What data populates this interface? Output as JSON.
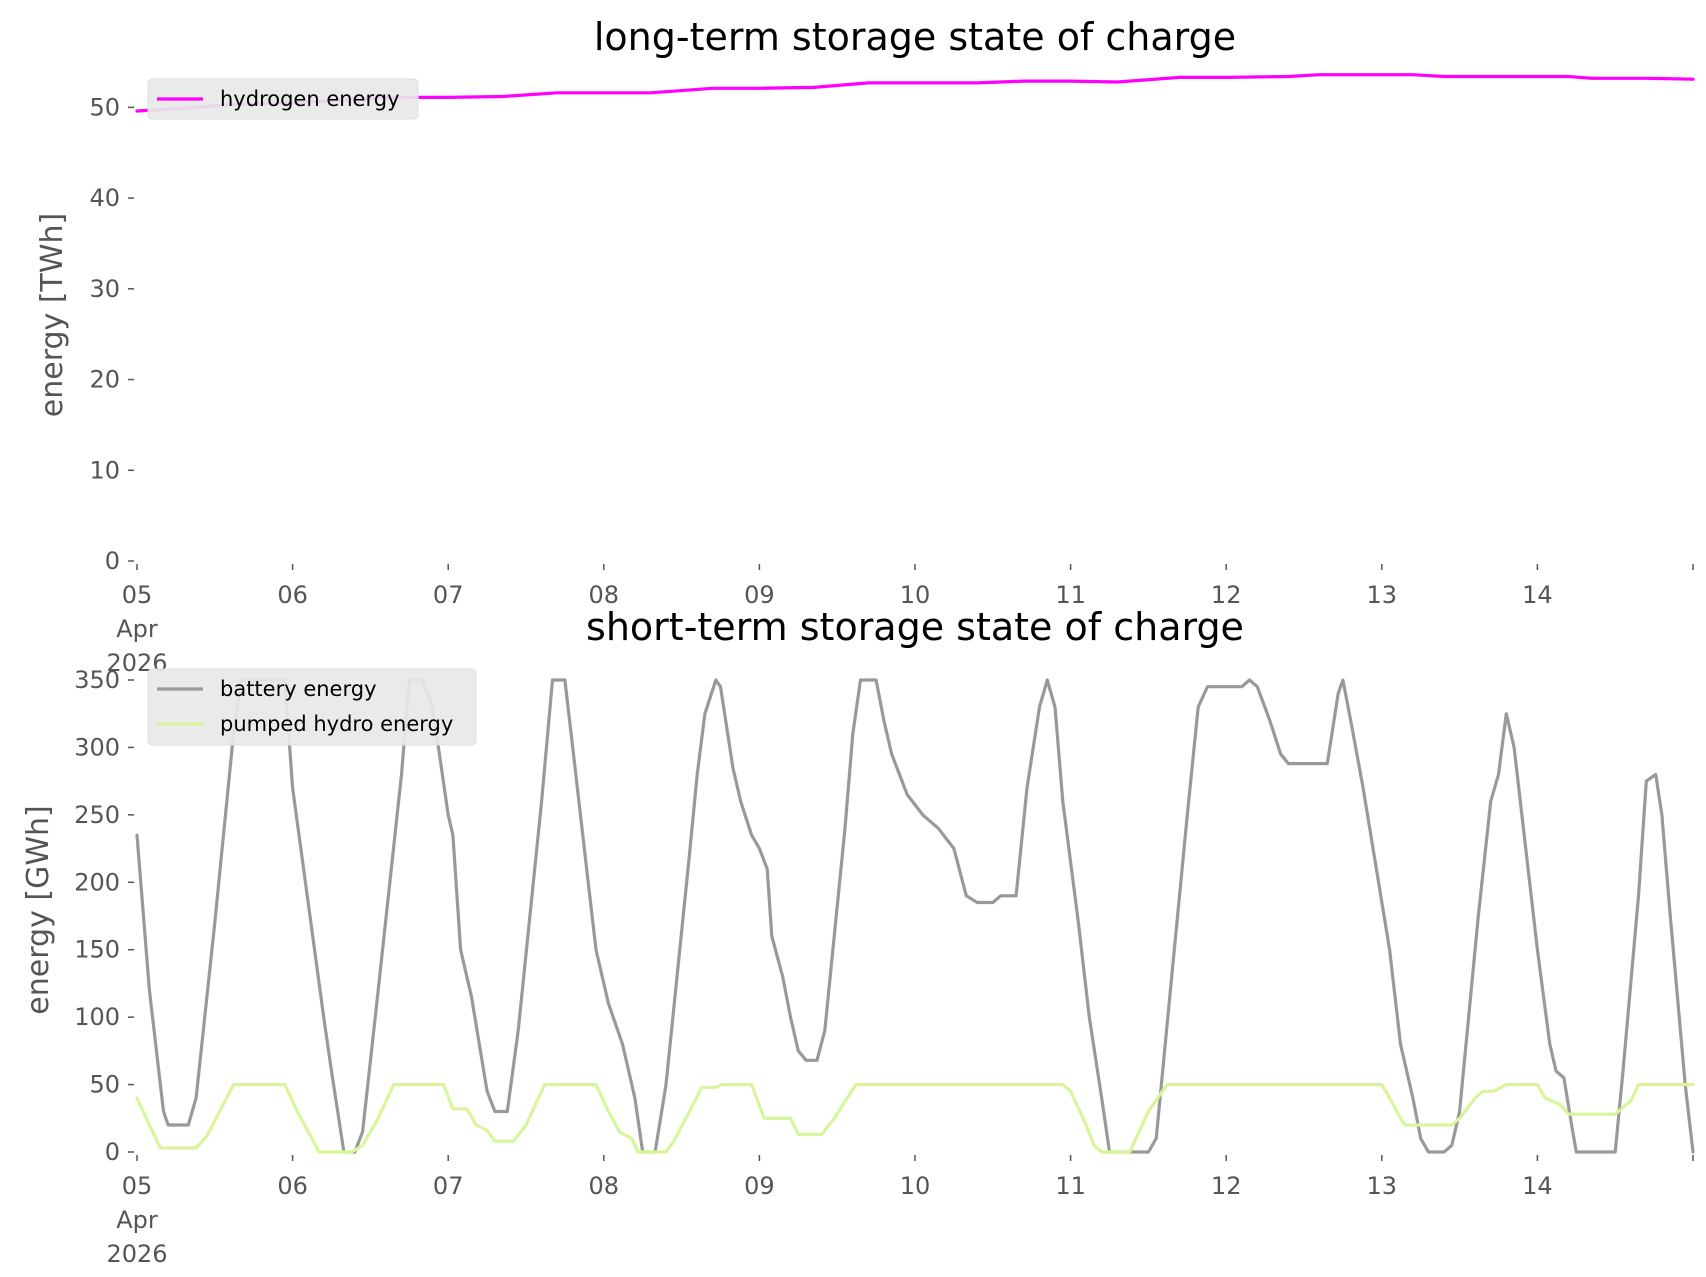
{
  "chart_data": [
    {
      "type": "line",
      "title": "long-term storage state of charge",
      "ylabel": "energy [TWh]",
      "xlabel": "",
      "ylim": [
        0,
        55
      ],
      "xlim": [
        0,
        10
      ],
      "yticks": [
        0,
        10,
        20,
        30,
        40,
        50
      ],
      "xtick_labels": [
        "05\nApr\n2026",
        "06",
        "07",
        "08",
        "09",
        "10",
        "11",
        "12",
        "13",
        "14"
      ],
      "grid": false,
      "legend_position": "upper-left",
      "series": [
        {
          "name": "hydrogen energy",
          "color": "#ff00ff",
          "points": [
            [
              0,
              49.6
            ],
            [
              0.3,
              49.9
            ],
            [
              0.6,
              50.3
            ],
            [
              1.0,
              50.5
            ],
            [
              1.4,
              50.9
            ],
            [
              1.7,
              51.1
            ],
            [
              2.0,
              51.1
            ],
            [
              2.35,
              51.2
            ],
            [
              2.7,
              51.6
            ],
            [
              3.0,
              51.6
            ],
            [
              3.3,
              51.6
            ],
            [
              3.7,
              52.1
            ],
            [
              4.0,
              52.1
            ],
            [
              4.35,
              52.2
            ],
            [
              4.7,
              52.7
            ],
            [
              5.0,
              52.7
            ],
            [
              5.4,
              52.7
            ],
            [
              5.7,
              52.9
            ],
            [
              6.0,
              52.9
            ],
            [
              6.3,
              52.8
            ],
            [
              6.7,
              53.3
            ],
            [
              7.0,
              53.3
            ],
            [
              7.4,
              53.4
            ],
            [
              7.6,
              53.6
            ],
            [
              8.0,
              53.6
            ],
            [
              8.2,
              53.6
            ],
            [
              8.4,
              53.4
            ],
            [
              8.8,
              53.4
            ],
            [
              9.2,
              53.4
            ],
            [
              9.35,
              53.2
            ],
            [
              9.7,
              53.2
            ],
            [
              10.0,
              53.1
            ]
          ]
        }
      ]
    },
    {
      "type": "line",
      "title": "short-term storage state of charge",
      "ylabel": "energy [GWh]",
      "xlabel": "",
      "ylim": [
        0,
        350
      ],
      "xlim": [
        0,
        10
      ],
      "yticks": [
        0,
        50,
        100,
        150,
        200,
        250,
        300,
        350
      ],
      "xtick_labels": [
        "05\nApr\n2026",
        "06",
        "07",
        "08",
        "09",
        "10",
        "11",
        "12",
        "13",
        "14"
      ],
      "grid": false,
      "legend_position": "upper-left",
      "series": [
        {
          "name": "battery energy",
          "color": "#999999",
          "points": [
            [
              0,
              235
            ],
            [
              0.08,
              120
            ],
            [
              0.17,
              30
            ],
            [
              0.2,
              20
            ],
            [
              0.33,
              20
            ],
            [
              0.38,
              40
            ],
            [
              0.5,
              170
            ],
            [
              0.62,
              310
            ],
            [
              0.67,
              350
            ],
            [
              0.95,
              350
            ],
            [
              1.0,
              270
            ],
            [
              1.2,
              100
            ],
            [
              1.25,
              60
            ],
            [
              1.33,
              0
            ],
            [
              1.4,
              0
            ],
            [
              1.45,
              15
            ],
            [
              1.55,
              120
            ],
            [
              1.7,
              280
            ],
            [
              1.75,
              350
            ],
            [
              1.83,
              350
            ],
            [
              1.9,
              330
            ],
            [
              2.0,
              250
            ],
            [
              2.03,
              235
            ],
            [
              2.08,
              150
            ],
            [
              2.15,
              115
            ],
            [
              2.2,
              80
            ],
            [
              2.25,
              45
            ],
            [
              2.3,
              30
            ],
            [
              2.38,
              30
            ],
            [
              2.45,
              90
            ],
            [
              2.6,
              260
            ],
            [
              2.67,
              350
            ],
            [
              2.75,
              350
            ],
            [
              2.8,
              300
            ],
            [
              2.9,
              200
            ],
            [
              2.95,
              150
            ],
            [
              3.03,
              110
            ],
            [
              3.12,
              80
            ],
            [
              3.2,
              40
            ],
            [
              3.25,
              0
            ],
            [
              3.33,
              0
            ],
            [
              3.4,
              50
            ],
            [
              3.55,
              220
            ],
            [
              3.6,
              280
            ],
            [
              3.65,
              325
            ],
            [
              3.72,
              350
            ],
            [
              3.75,
              345
            ],
            [
              3.83,
              285
            ],
            [
              3.88,
              260
            ],
            [
              3.95,
              235
            ],
            [
              4.0,
              225
            ],
            [
              4.05,
              210
            ],
            [
              4.08,
              160
            ],
            [
              4.15,
              130
            ],
            [
              4.2,
              100
            ],
            [
              4.25,
              75
            ],
            [
              4.3,
              68
            ],
            [
              4.37,
              68
            ],
            [
              4.42,
              90
            ],
            [
              4.55,
              240
            ],
            [
              4.6,
              310
            ],
            [
              4.65,
              350
            ],
            [
              4.75,
              350
            ],
            [
              4.8,
              320
            ],
            [
              4.85,
              295
            ],
            [
              4.95,
              265
            ],
            [
              5.05,
              250
            ],
            [
              5.15,
              240
            ],
            [
              5.25,
              225
            ],
            [
              5.33,
              190
            ],
            [
              5.4,
              185
            ],
            [
              5.5,
              185
            ],
            [
              5.55,
              190
            ],
            [
              5.65,
              190
            ],
            [
              5.72,
              270
            ],
            [
              5.8,
              330
            ],
            [
              5.85,
              350
            ],
            [
              5.9,
              330
            ],
            [
              5.95,
              260
            ],
            [
              6.05,
              170
            ],
            [
              6.12,
              100
            ],
            [
              6.2,
              40
            ],
            [
              6.25,
              0
            ],
            [
              6.35,
              0
            ],
            [
              6.45,
              0
            ],
            [
              6.5,
              0
            ],
            [
              6.55,
              10
            ],
            [
              6.65,
              130
            ],
            [
              6.75,
              250
            ],
            [
              6.82,
              330
            ],
            [
              6.88,
              345
            ],
            [
              7.0,
              345
            ],
            [
              7.1,
              345
            ],
            [
              7.15,
              350
            ],
            [
              7.2,
              345
            ],
            [
              7.28,
              320
            ],
            [
              7.35,
              295
            ],
            [
              7.4,
              288
            ],
            [
              7.5,
              288
            ],
            [
              7.6,
              288
            ],
            [
              7.65,
              288
            ],
            [
              7.72,
              340
            ],
            [
              7.75,
              350
            ],
            [
              7.8,
              320
            ],
            [
              7.88,
              270
            ],
            [
              8.05,
              150
            ],
            [
              8.12,
              80
            ],
            [
              8.2,
              40
            ],
            [
              8.25,
              10
            ],
            [
              8.3,
              0
            ],
            [
              8.4,
              0
            ],
            [
              8.45,
              5
            ],
            [
              8.5,
              30
            ],
            [
              8.62,
              175
            ],
            [
              8.7,
              260
            ],
            [
              8.75,
              280
            ],
            [
              8.8,
              325
            ],
            [
              8.85,
              300
            ],
            [
              9.0,
              150
            ],
            [
              9.08,
              80
            ],
            [
              9.12,
              60
            ],
            [
              9.17,
              55
            ],
            [
              9.22,
              20
            ],
            [
              9.25,
              0
            ],
            [
              9.35,
              0
            ],
            [
              9.45,
              0
            ],
            [
              9.5,
              0
            ],
            [
              9.55,
              60
            ],
            [
              9.65,
              190
            ],
            [
              9.7,
              275
            ],
            [
              9.76,
              280
            ],
            [
              9.8,
              250
            ],
            [
              9.85,
              180
            ],
            [
              9.95,
              50
            ],
            [
              10.0,
              0
            ]
          ]
        },
        {
          "name": "pumped hydro energy",
          "color": "#d9f59c",
          "points": [
            [
              0,
              40
            ],
            [
              0.08,
              20
            ],
            [
              0.15,
              3
            ],
            [
              0.38,
              3
            ],
            [
              0.45,
              12
            ],
            [
              0.62,
              50
            ],
            [
              0.95,
              50
            ],
            [
              1.03,
              30
            ],
            [
              1.17,
              0
            ],
            [
              1.38,
              0
            ],
            [
              1.45,
              5
            ],
            [
              1.55,
              25
            ],
            [
              1.65,
              50
            ],
            [
              1.97,
              50
            ],
            [
              2.03,
              32
            ],
            [
              2.12,
              32
            ],
            [
              2.18,
              20
            ],
            [
              2.25,
              16
            ],
            [
              2.3,
              8
            ],
            [
              2.42,
              8
            ],
            [
              2.5,
              20
            ],
            [
              2.62,
              50
            ],
            [
              2.95,
              50
            ],
            [
              3.03,
              30
            ],
            [
              3.1,
              15
            ],
            [
              3.18,
              10
            ],
            [
              3.22,
              0
            ],
            [
              3.4,
              0
            ],
            [
              3.45,
              8
            ],
            [
              3.55,
              30
            ],
            [
              3.63,
              48
            ],
            [
              3.72,
              48
            ],
            [
              3.76,
              50
            ],
            [
              3.85,
              50
            ],
            [
              3.95,
              50
            ],
            [
              4.03,
              25
            ],
            [
              4.2,
              25
            ],
            [
              4.25,
              13
            ],
            [
              4.4,
              13
            ],
            [
              4.48,
              25
            ],
            [
              4.62,
              50
            ],
            [
              4.75,
              50
            ],
            [
              5.0,
              50
            ],
            [
              5.25,
              50
            ],
            [
              5.5,
              50
            ],
            [
              5.75,
              50
            ],
            [
              5.95,
              50
            ],
            [
              6.0,
              45
            ],
            [
              6.1,
              20
            ],
            [
              6.15,
              5
            ],
            [
              6.2,
              0
            ],
            [
              6.38,
              0
            ],
            [
              6.42,
              10
            ],
            [
              6.5,
              30
            ],
            [
              6.62,
              50
            ],
            [
              6.75,
              50
            ],
            [
              7.0,
              50
            ],
            [
              7.5,
              50
            ],
            [
              8.0,
              50
            ],
            [
              8.05,
              40
            ],
            [
              8.12,
              25
            ],
            [
              8.15,
              20
            ],
            [
              8.45,
              20
            ],
            [
              8.5,
              25
            ],
            [
              8.6,
              40
            ],
            [
              8.65,
              45
            ],
            [
              8.72,
              45
            ],
            [
              8.8,
              50
            ],
            [
              8.95,
              50
            ],
            [
              9.0,
              50
            ],
            [
              9.05,
              40
            ],
            [
              9.15,
              35
            ],
            [
              9.2,
              28
            ],
            [
              9.45,
              28
            ],
            [
              9.5,
              28
            ],
            [
              9.6,
              38
            ],
            [
              9.65,
              50
            ],
            [
              10.0,
              50
            ]
          ]
        }
      ]
    }
  ]
}
